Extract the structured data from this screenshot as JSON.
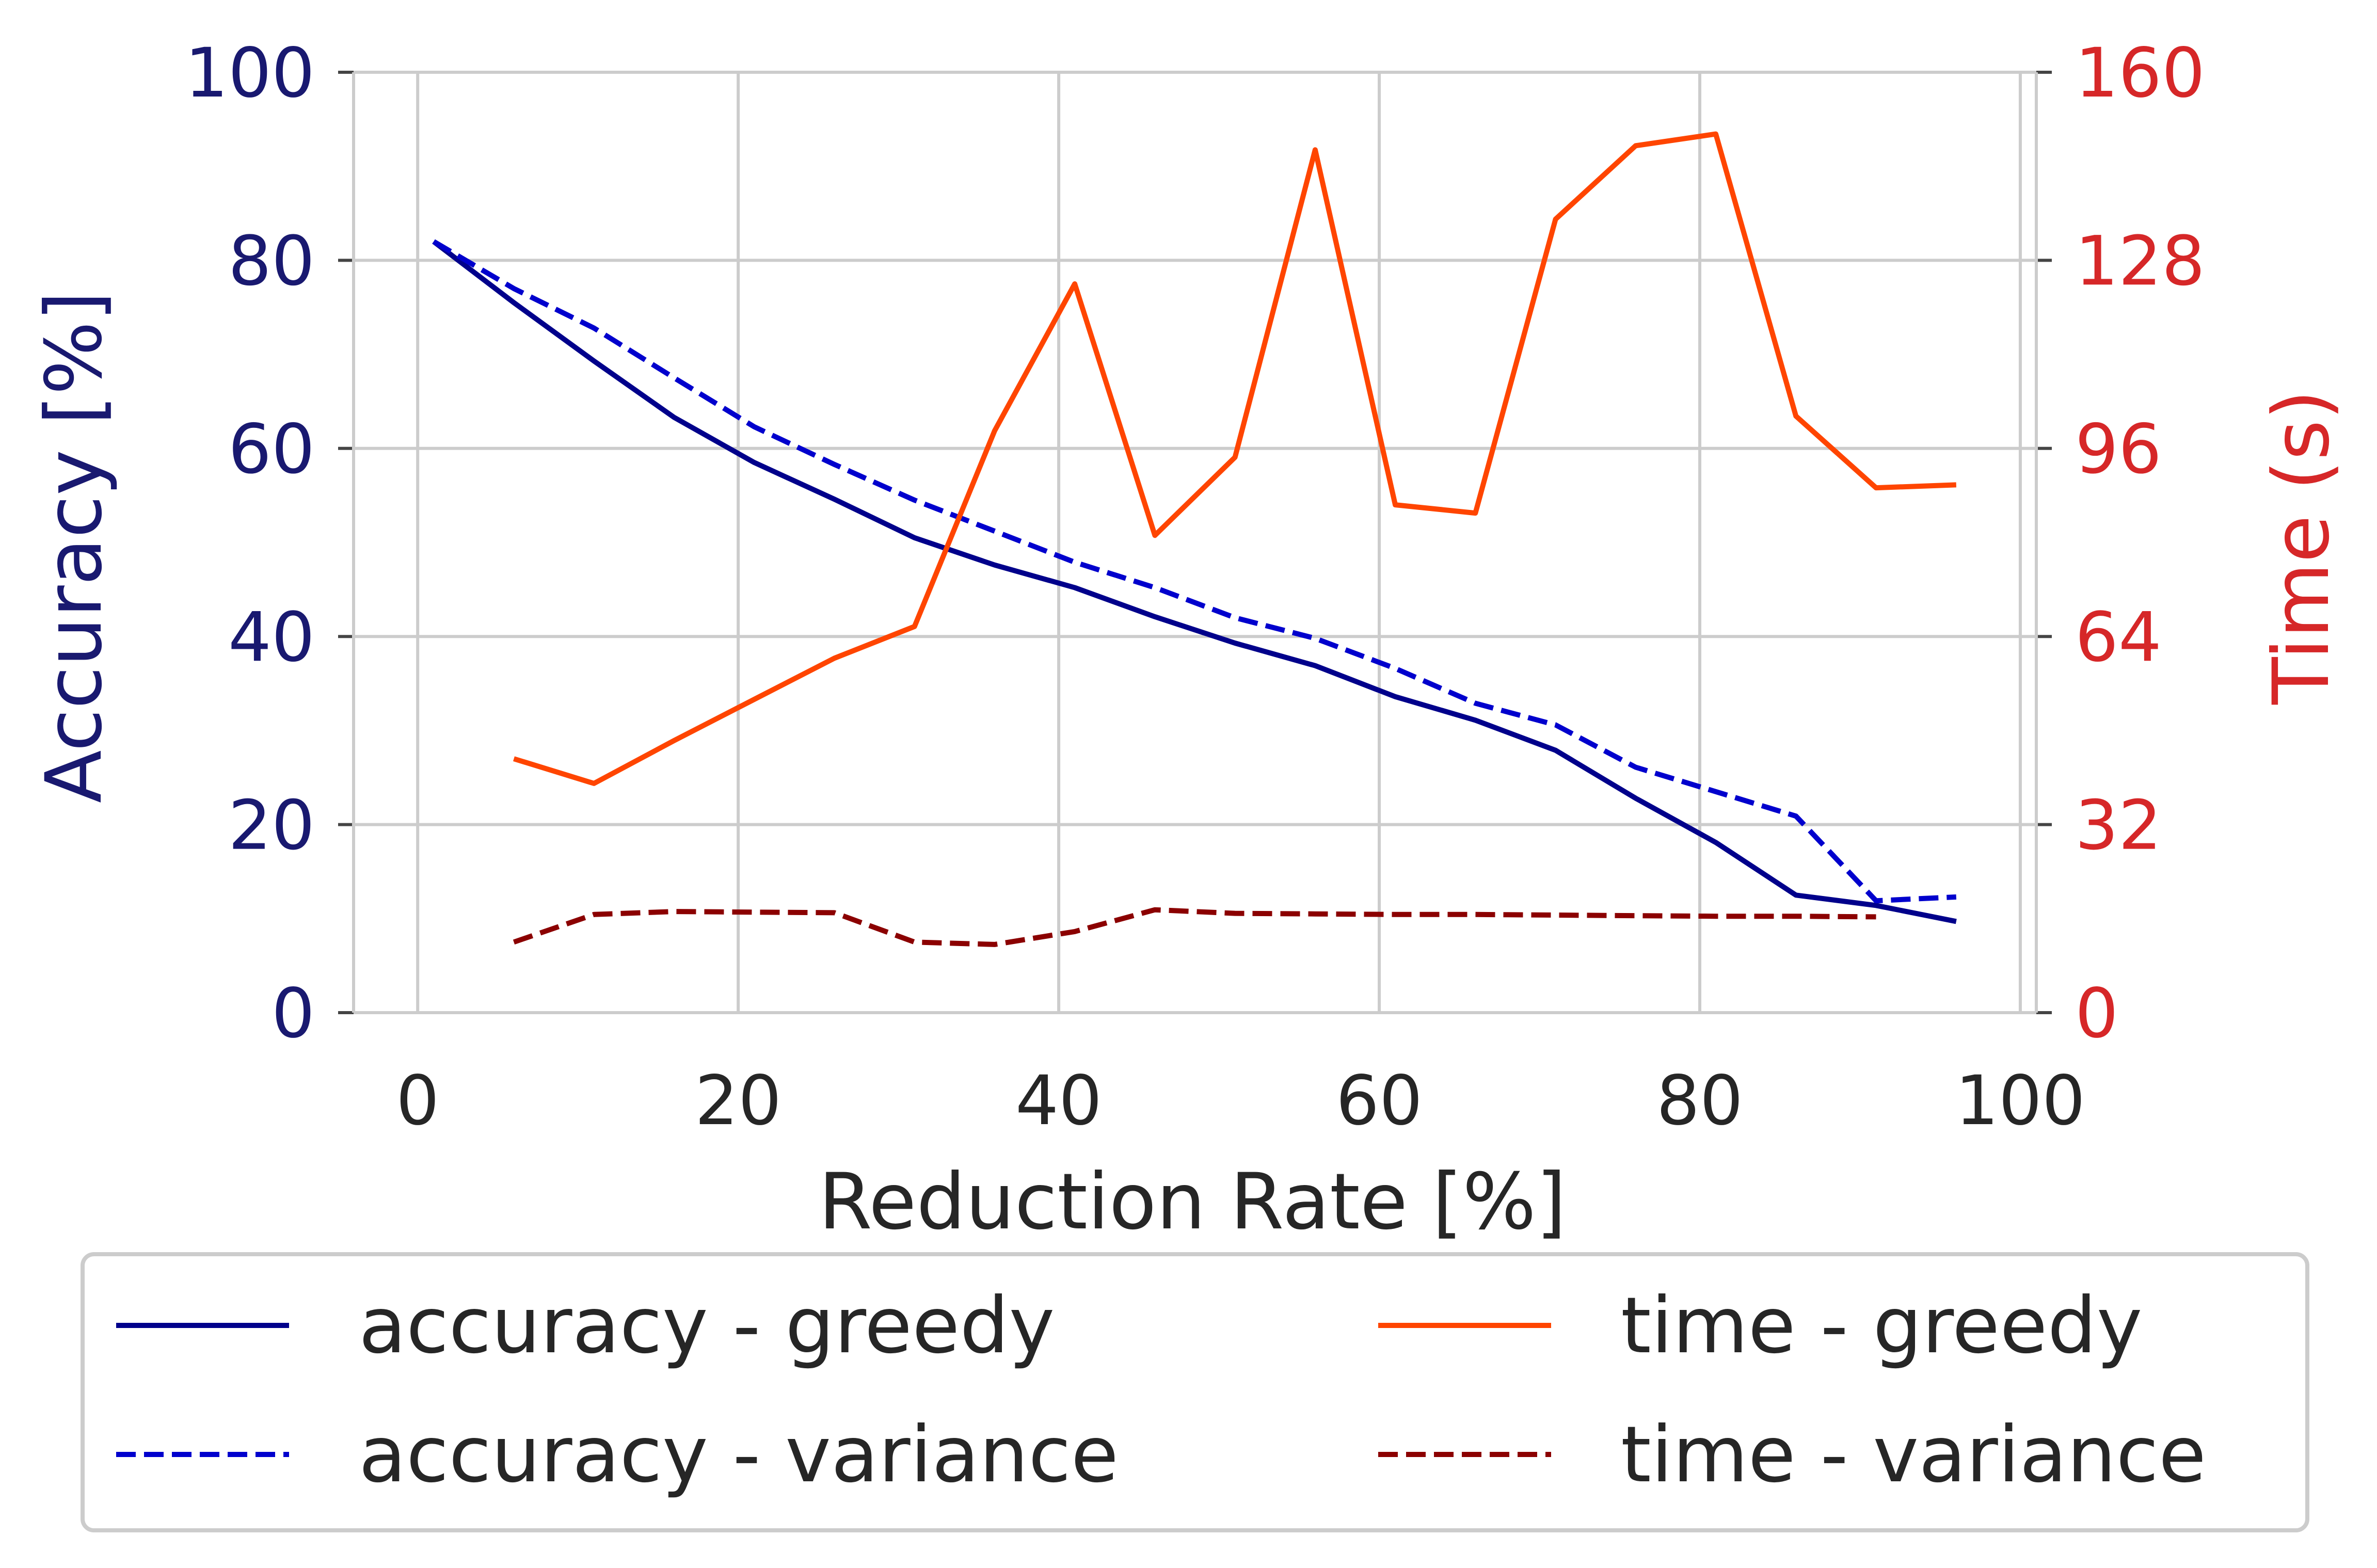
{
  "chart_data": {
    "type": "line",
    "xlabel": "Reduction Rate [%]",
    "ylabel_left": "Accuracy [%]",
    "ylabel_right": "Time (s)",
    "xlim": [
      -4,
      101
    ],
    "ylim_left": [
      0,
      100
    ],
    "ylim_right": [
      0,
      160
    ],
    "x_ticks": [
      0,
      20,
      40,
      60,
      80,
      100
    ],
    "y_left_ticks": [
      0,
      20,
      40,
      60,
      80,
      100
    ],
    "y_right_ticks": [
      0,
      32,
      64,
      96,
      128,
      160
    ],
    "grid": true,
    "legend_placement": "below",
    "colors": {
      "left_axis": "#191970",
      "right_axis": "#d62728",
      "x_axis": "#262626"
    },
    "series": [
      {
        "name": "accuracy - greedy",
        "axis": "left",
        "color": "#00008b",
        "style": "solid",
        "x": [
          1,
          6,
          11,
          16,
          21,
          26,
          31,
          36,
          41,
          46,
          51,
          56,
          61,
          66,
          71,
          76,
          81,
          86,
          91,
          96
        ],
        "values": [
          82,
          75.5,
          69.3,
          63.3,
          58.5,
          54.6,
          50.5,
          47.6,
          45.2,
          42.1,
          39.3,
          36.9,
          33.6,
          31.1,
          27.9,
          22.8,
          18.1,
          12.5,
          11.4,
          9.7
        ]
      },
      {
        "name": "accuracy - variance",
        "axis": "left",
        "color": "#0000cd",
        "style": "dashed",
        "x": [
          1,
          6,
          11,
          16,
          21,
          26,
          31,
          36,
          41,
          46,
          51,
          56,
          61,
          66,
          71,
          76,
          81,
          86,
          91,
          96
        ],
        "values": [
          82,
          77,
          72.8,
          67.5,
          62.3,
          58.3,
          54.5,
          51.2,
          47.9,
          45.2,
          42,
          39.8,
          36.6,
          32.9,
          30.6,
          26.1,
          23.5,
          20.9,
          11.9,
          12.3
        ]
      },
      {
        "name": "time - greedy",
        "axis": "right",
        "color": "#ff4500",
        "style": "solid",
        "x": [
          6,
          11,
          16,
          21,
          26,
          31,
          36,
          41,
          46,
          51,
          56,
          61,
          66,
          71,
          76,
          81,
          86,
          91,
          96
        ],
        "values": [
          43.2,
          39,
          46.3,
          53.3,
          60.3,
          65.7,
          99,
          124,
          81.2,
          94.5,
          146.8,
          86.4,
          85,
          135,
          147.5,
          149.5,
          101.5,
          89.3,
          89.8
        ]
      },
      {
        "name": "time - variance",
        "axis": "right",
        "color": "#8b0000",
        "style": "dashed",
        "x": [
          6,
          11,
          16,
          21,
          26,
          31,
          36,
          41,
          46,
          51,
          56,
          61,
          66,
          71,
          76,
          81,
          86,
          91
        ],
        "values": [
          12,
          16.7,
          17.2,
          17.1,
          17,
          12,
          11.6,
          13.8,
          17.5,
          16.9,
          16.8,
          16.7,
          16.7,
          16.6,
          16.5,
          16.4,
          16.4,
          16.3
        ]
      }
    ]
  }
}
